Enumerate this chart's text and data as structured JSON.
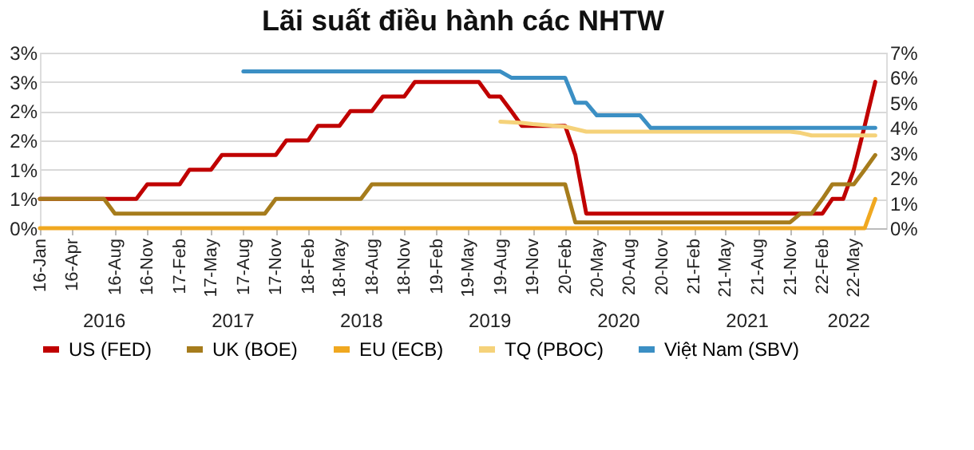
{
  "chart_data": {
    "type": "line",
    "title": "Lãi suất điều hành các NHTW",
    "xlim": [
      "2016-01-01",
      "2022-08-01"
    ],
    "xticks": [
      {
        "value": "2016-01-01",
        "label": "16-Jan"
      },
      {
        "value": "2016-04-01",
        "label": "16-Apr"
      },
      {
        "value": "2016-08-01",
        "label": "16-Aug"
      },
      {
        "value": "2016-11-01",
        "label": "16-Nov"
      },
      {
        "value": "2017-02-01",
        "label": "17-Feb"
      },
      {
        "value": "2017-05-01",
        "label": "17-May"
      },
      {
        "value": "2017-08-01",
        "label": "17-Aug"
      },
      {
        "value": "2017-11-01",
        "label": "17-Nov"
      },
      {
        "value": "2018-02-01",
        "label": "18-Feb"
      },
      {
        "value": "2018-05-01",
        "label": "18-May"
      },
      {
        "value": "2018-08-01",
        "label": "18-Aug"
      },
      {
        "value": "2018-11-01",
        "label": "18-Nov"
      },
      {
        "value": "2019-02-01",
        "label": "19-Feb"
      },
      {
        "value": "2019-05-01",
        "label": "19-May"
      },
      {
        "value": "2019-08-01",
        "label": "19-Aug"
      },
      {
        "value": "2019-11-01",
        "label": "19-Nov"
      },
      {
        "value": "2020-02-01",
        "label": "20-Feb"
      },
      {
        "value": "2020-05-01",
        "label": "20-May"
      },
      {
        "value": "2020-08-01",
        "label": "20-Aug"
      },
      {
        "value": "2020-11-01",
        "label": "20-Nov"
      },
      {
        "value": "2021-02-01",
        "label": "21-Feb"
      },
      {
        "value": "2021-05-01",
        "label": "21-May"
      },
      {
        "value": "2021-08-01",
        "label": "21-Aug"
      },
      {
        "value": "2021-11-01",
        "label": "21-Nov"
      },
      {
        "value": "2022-02-01",
        "label": "22-Feb"
      },
      {
        "value": "2022-05-01",
        "label": "22-May"
      }
    ],
    "ylim": [
      0,
      3
    ],
    "yticks": [
      {
        "value": 0,
        "label": "0%"
      },
      {
        "value": 0.5,
        "label": "1%"
      },
      {
        "value": 1,
        "label": "1%"
      },
      {
        "value": 1.5,
        "label": "2%"
      },
      {
        "value": 2,
        "label": "2%"
      },
      {
        "value": 2.5,
        "label": "3%"
      },
      {
        "value": 3,
        "label": "3%"
      }
    ],
    "y2lim": [
      0,
      7
    ],
    "y2ticks": [
      {
        "value": 0,
        "label": "0%"
      },
      {
        "value": 1,
        "label": "1%"
      },
      {
        "value": 2,
        "label": "2%"
      },
      {
        "value": 3,
        "label": "3%"
      },
      {
        "value": 4,
        "label": "4%"
      },
      {
        "value": 5,
        "label": "5%"
      },
      {
        "value": 6,
        "label": "6%"
      },
      {
        "value": 7,
        "label": "7%"
      }
    ],
    "grid": "y",
    "legend": "bottom",
    "line_style": "solid",
    "marker": "none",
    "annotations": [
      "2016",
      "2017",
      "2018",
      "2019",
      "2020",
      "2021",
      "2022"
    ],
    "series": [
      {
        "name": "US (FED)",
        "color": "#c00000",
        "x": [
          "2016-01-01",
          "2016-10-01",
          "2016-11-01",
          "2017-02-01",
          "2017-03-01",
          "2017-05-01",
          "2017-06-01",
          "2017-11-01",
          "2017-12-01",
          "2018-02-01",
          "2018-03-01",
          "2018-05-01",
          "2018-06-01",
          "2018-08-01",
          "2018-09-01",
          "2018-11-01",
          "2018-12-01",
          "2019-06-01",
          "2019-07-01",
          "2019-08-01",
          "2019-09-01",
          "2019-10-01",
          "2020-02-01",
          "2020-03-01",
          "2020-04-01",
          "2022-02-01",
          "2022-03-01",
          "2022-04-01",
          "2022-05-01",
          "2022-06-01",
          "2022-07-01"
        ],
        "values": [
          0.5,
          0.5,
          0.75,
          0.75,
          1.0,
          1.0,
          1.25,
          1.25,
          1.5,
          1.5,
          1.75,
          1.75,
          2.0,
          2.0,
          2.25,
          2.25,
          2.5,
          2.5,
          2.25,
          2.25,
          2.0,
          1.75,
          1.75,
          1.25,
          0.25,
          0.25,
          0.5,
          0.5,
          1.0,
          1.75,
          2.5
        ]
      },
      {
        "name": "UK (BOE)",
        "color": "#a67c1c",
        "x": [
          "2016-01-01",
          "2016-07-01",
          "2016-08-01",
          "2017-10-01",
          "2017-11-01",
          "2018-07-01",
          "2018-08-01",
          "2020-02-01",
          "2020-03-01",
          "2021-11-01",
          "2021-12-01",
          "2022-01-01",
          "2022-02-01",
          "2022-03-01",
          "2022-05-01",
          "2022-06-01",
          "2022-07-01"
        ],
        "values": [
          0.5,
          0.5,
          0.25,
          0.25,
          0.5,
          0.5,
          0.75,
          0.75,
          0.1,
          0.1,
          0.25,
          0.25,
          0.5,
          0.75,
          0.75,
          1.0,
          1.25
        ]
      },
      {
        "name": "EU (ECB)",
        "color": "#f0a820",
        "x": [
          "2016-01-01",
          "2022-06-01",
          "2022-07-01"
        ],
        "values": [
          0,
          0,
          0.5
        ]
      },
      {
        "name": "TQ (PBOC)",
        "color": "#f5d27a",
        "axis": "y2",
        "x": [
          "2019-08-01",
          "2019-10-01",
          "2019-11-01",
          "2020-02-01",
          "2020-04-01",
          "2021-11-01",
          "2021-12-01",
          "2022-01-01",
          "2022-07-01"
        ],
        "values": [
          4.25,
          4.2,
          4.15,
          4.05,
          3.85,
          3.85,
          3.8,
          3.7,
          3.7
        ]
      },
      {
        "name": "Việt Nam (SBV)",
        "color": "#3b8fc4",
        "axis": "y2",
        "x": [
          "2017-08-01",
          "2019-08-01",
          "2019-09-01",
          "2020-02-01",
          "2020-03-01",
          "2020-04-01",
          "2020-05-01",
          "2020-09-01",
          "2020-10-01",
          "2022-07-01"
        ],
        "values": [
          6.25,
          6.25,
          6.0,
          6.0,
          5.0,
          5.0,
          4.5,
          4.5,
          4.0,
          4.0
        ]
      }
    ]
  }
}
